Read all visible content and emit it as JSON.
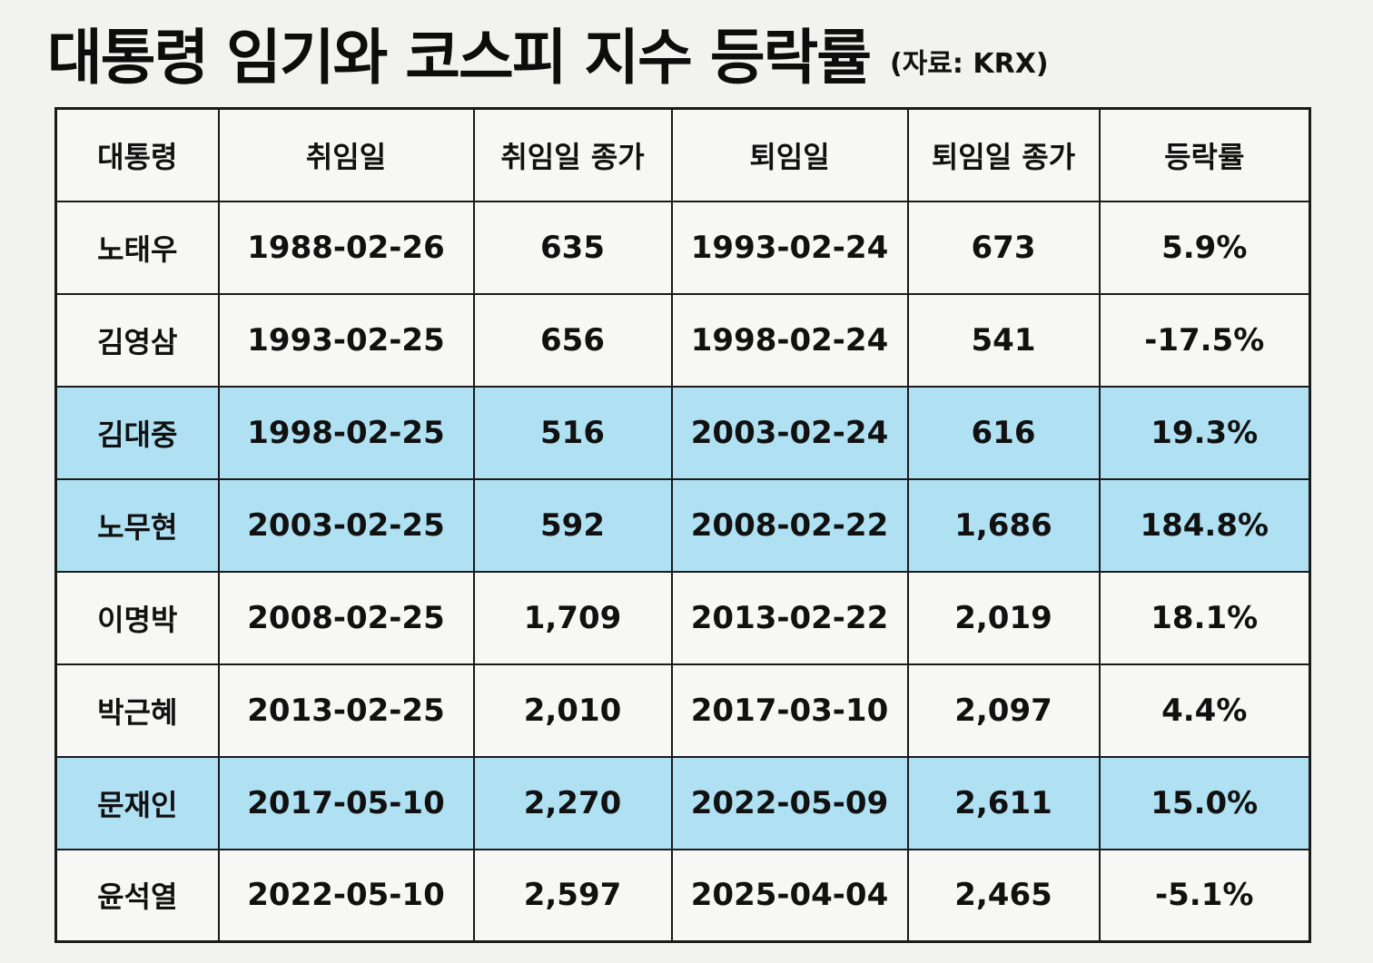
{
  "header": {
    "title": "대통령 임기와 코스피 지수 등락률",
    "source": "(자료: KRX)"
  },
  "colors": {
    "highlight": "#b0e1f3",
    "background": "#f2f3f1",
    "cell": "#f7f7f6",
    "border": "#1a1a1a"
  },
  "table": {
    "columns": [
      "대통령",
      "취임일",
      "취임일 종가",
      "퇴임일",
      "퇴임일 종가",
      "등락률"
    ],
    "rows": [
      {
        "president": "노태우",
        "start_date": "1988-02-26",
        "start_close": "635",
        "end_date": "1993-02-24",
        "end_close": "673",
        "change": "5.9%",
        "highlighted": false
      },
      {
        "president": "김영삼",
        "start_date": "1993-02-25",
        "start_close": "656",
        "end_date": "1998-02-24",
        "end_close": "541",
        "change": "-17.5%",
        "highlighted": false
      },
      {
        "president": "김대중",
        "start_date": "1998-02-25",
        "start_close": "516",
        "end_date": "2003-02-24",
        "end_close": "616",
        "change": "19.3%",
        "highlighted": true
      },
      {
        "president": "노무현",
        "start_date": "2003-02-25",
        "start_close": "592",
        "end_date": "2008-02-22",
        "end_close": "1,686",
        "change": "184.8%",
        "highlighted": true
      },
      {
        "president": "이명박",
        "start_date": "2008-02-25",
        "start_close": "1,709",
        "end_date": "2013-02-22",
        "end_close": "2,019",
        "change": "18.1%",
        "highlighted": false
      },
      {
        "president": "박근혜",
        "start_date": "2013-02-25",
        "start_close": "2,010",
        "end_date": "2017-03-10",
        "end_close": "2,097",
        "change": "4.4%",
        "highlighted": false
      },
      {
        "president": "문재인",
        "start_date": "2017-05-10",
        "start_close": "2,270",
        "end_date": "2022-05-09",
        "end_close": "2,611",
        "change": "15.0%",
        "highlighted": true
      },
      {
        "president": "윤석열",
        "start_date": "2022-05-10",
        "start_close": "2,597",
        "end_date": "2025-04-04",
        "end_close": "2,465",
        "change": "-5.1%",
        "highlighted": false
      }
    ]
  }
}
